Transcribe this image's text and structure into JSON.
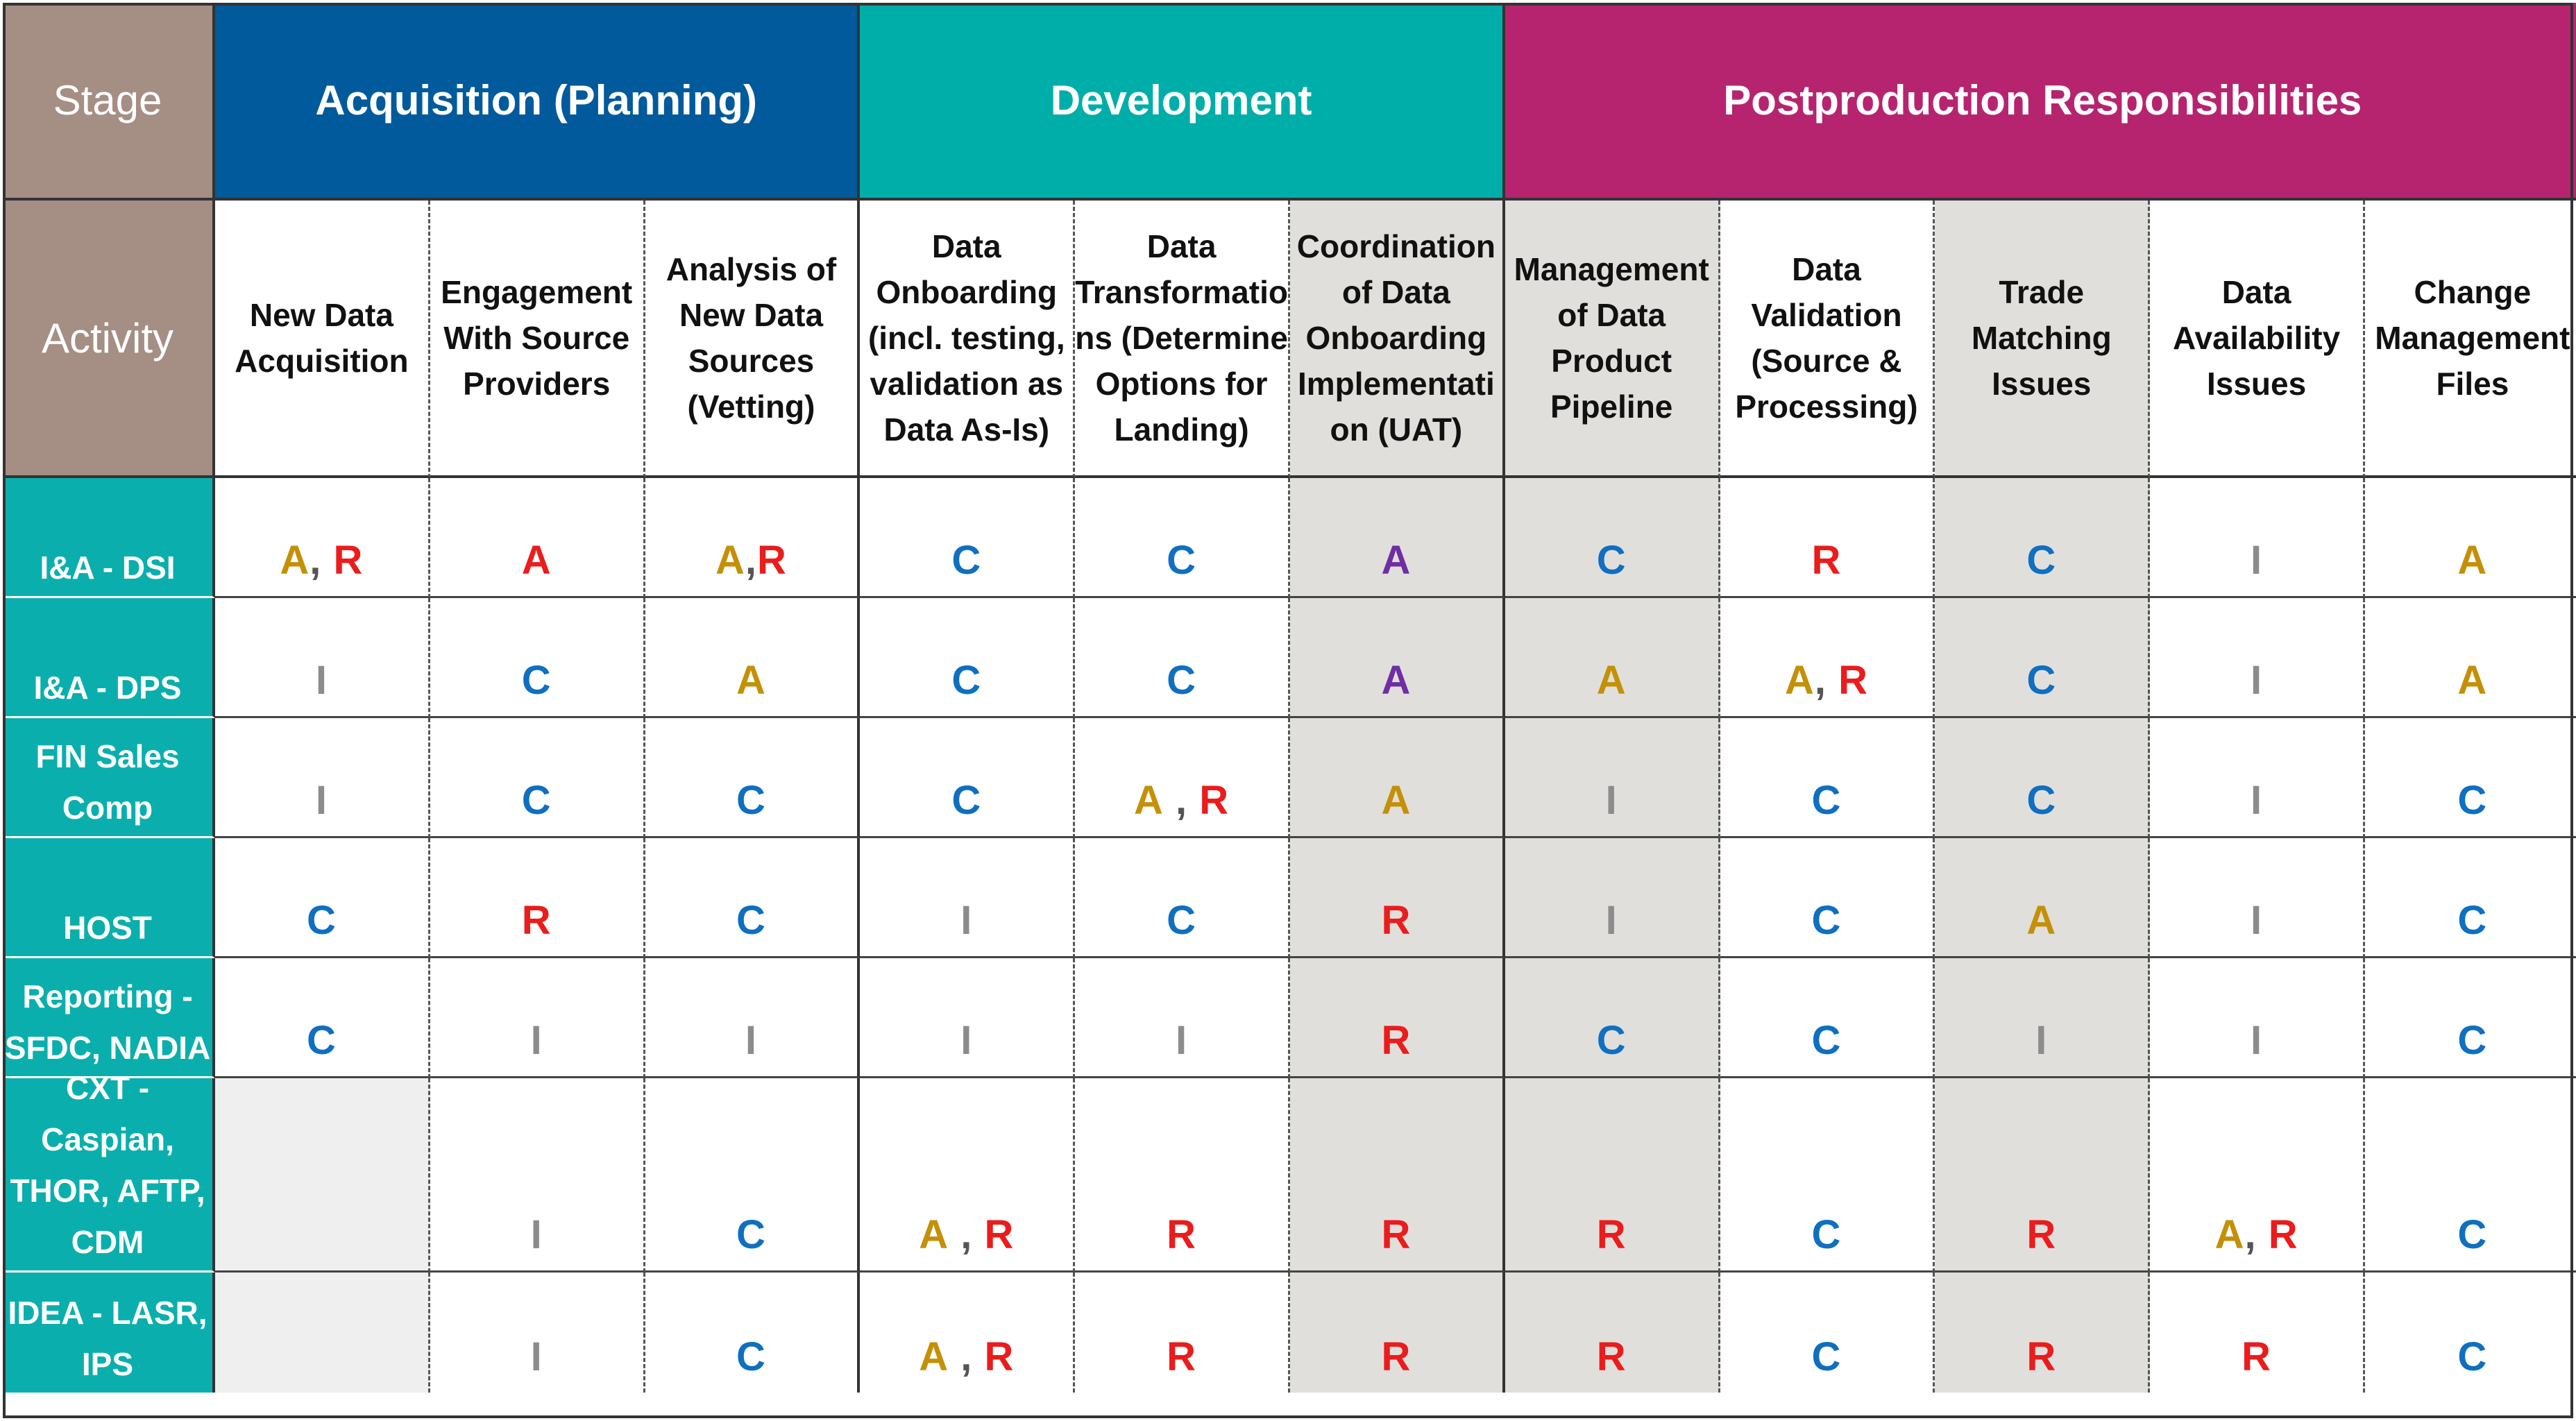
{
  "header": {
    "stage_label": "Stage",
    "activity_label": "Activity",
    "groups": [
      {
        "label": "Acquisition (Planning)",
        "span": 3,
        "color": "#005a9c"
      },
      {
        "label": "Development",
        "span": 3,
        "color": "#00aea9"
      },
      {
        "label": "Postproduction Responsibilities",
        "span": 5,
        "color": "#b6246f"
      }
    ]
  },
  "activities": [
    {
      "label": "New Data\nAcquisition",
      "shaded": false
    },
    {
      "label": "Engagement\nWith Source\nProviders",
      "shaded": false
    },
    {
      "label": "Analysis of\nNew Data\nSources\n(Vetting)",
      "shaded": false
    },
    {
      "label": "Data\nOnboarding\n(incl. testing,\nvalidation as\nData As-Is)",
      "shaded": false
    },
    {
      "label": "Data\nTransformatio\nns (Determine\nOptions for\nLanding)",
      "shaded": false
    },
    {
      "label": "Coordination\nof Data\nOnboarding\nImplementati\non (UAT)",
      "shaded": true
    },
    {
      "label": "Management\nof Data\nProduct\nPipeline",
      "shaded": true
    },
    {
      "label": "Data\nValidation\n(Source &\nProcessing)",
      "shaded": false
    },
    {
      "label": "Trade\nMatching\nIssues",
      "shaded": true
    },
    {
      "label": "Data\nAvailability\nIssues",
      "shaded": false
    },
    {
      "label": "Change\nManagement\nFiles",
      "shaded": false
    }
  ],
  "rows": [
    {
      "label": "I&A - DSI",
      "cells": [
        [
          {
            "t": "A",
            "c": "A"
          },
          {
            "t": ", ",
            "c": "sep"
          },
          {
            "t": "R",
            "c": "R"
          }
        ],
        [
          {
            "t": "A",
            "c": "R"
          }
        ],
        [
          {
            "t": "A",
            "c": "A"
          },
          {
            "t": ",",
            "c": "sep"
          },
          {
            "t": "R",
            "c": "R"
          }
        ],
        [
          {
            "t": "C",
            "c": "C"
          }
        ],
        [
          {
            "t": "C",
            "c": "C"
          }
        ],
        [
          {
            "t": "A",
            "c": "P"
          }
        ],
        [
          {
            "t": "C",
            "c": "C"
          }
        ],
        [
          {
            "t": "R",
            "c": "R"
          }
        ],
        [
          {
            "t": "C",
            "c": "C"
          }
        ],
        [
          {
            "t": "I",
            "c": "I"
          }
        ],
        [
          {
            "t": "A",
            "c": "A"
          }
        ]
      ]
    },
    {
      "label": "I&A - DPS",
      "cells": [
        [
          {
            "t": "I",
            "c": "I"
          }
        ],
        [
          {
            "t": "C",
            "c": "C"
          }
        ],
        [
          {
            "t": "A",
            "c": "A"
          }
        ],
        [
          {
            "t": "C",
            "c": "C"
          }
        ],
        [
          {
            "t": "C",
            "c": "C"
          }
        ],
        [
          {
            "t": "A",
            "c": "P"
          }
        ],
        [
          {
            "t": "A",
            "c": "A"
          }
        ],
        [
          {
            "t": "A",
            "c": "A"
          },
          {
            "t": ", ",
            "c": "sep"
          },
          {
            "t": "R",
            "c": "R"
          }
        ],
        [
          {
            "t": "C",
            "c": "C"
          }
        ],
        [
          {
            "t": "I",
            "c": "I"
          }
        ],
        [
          {
            "t": "A",
            "c": "A"
          }
        ]
      ]
    },
    {
      "label": "FIN Sales\nComp",
      "cells": [
        [
          {
            "t": "I",
            "c": "I"
          }
        ],
        [
          {
            "t": "C",
            "c": "C"
          }
        ],
        [
          {
            "t": "C",
            "c": "C"
          }
        ],
        [
          {
            "t": "C",
            "c": "C"
          }
        ],
        [
          {
            "t": "A",
            "c": "A"
          },
          {
            "t": " , ",
            "c": "sep"
          },
          {
            "t": "R",
            "c": "R"
          }
        ],
        [
          {
            "t": "A",
            "c": "A"
          }
        ],
        [
          {
            "t": "I",
            "c": "I"
          }
        ],
        [
          {
            "t": "C",
            "c": "C"
          }
        ],
        [
          {
            "t": "C",
            "c": "C"
          }
        ],
        [
          {
            "t": "I",
            "c": "I"
          }
        ],
        [
          {
            "t": "C",
            "c": "C"
          }
        ]
      ]
    },
    {
      "label": "HOST",
      "cells": [
        [
          {
            "t": "C",
            "c": "C"
          }
        ],
        [
          {
            "t": "R",
            "c": "R"
          }
        ],
        [
          {
            "t": "C",
            "c": "C"
          }
        ],
        [
          {
            "t": "I",
            "c": "I"
          }
        ],
        [
          {
            "t": "C",
            "c": "C"
          }
        ],
        [
          {
            "t": "R",
            "c": "R"
          }
        ],
        [
          {
            "t": "I",
            "c": "I"
          }
        ],
        [
          {
            "t": "C",
            "c": "C"
          }
        ],
        [
          {
            "t": "A",
            "c": "A"
          }
        ],
        [
          {
            "t": "I",
            "c": "I"
          }
        ],
        [
          {
            "t": "C",
            "c": "C"
          }
        ]
      ]
    },
    {
      "label": "Reporting -\nSFDC, NADIA",
      "cells": [
        [
          {
            "t": "C",
            "c": "C"
          }
        ],
        [
          {
            "t": "I",
            "c": "I"
          }
        ],
        [
          {
            "t": "I",
            "c": "I"
          }
        ],
        [
          {
            "t": "I",
            "c": "I"
          }
        ],
        [
          {
            "t": "I",
            "c": "I"
          }
        ],
        [
          {
            "t": "R",
            "c": "R"
          }
        ],
        [
          {
            "t": "C",
            "c": "C"
          }
        ],
        [
          {
            "t": "C",
            "c": "C"
          }
        ],
        [
          {
            "t": "I",
            "c": "I"
          }
        ],
        [
          {
            "t": "I",
            "c": "I"
          }
        ],
        [
          {
            "t": "C",
            "c": "C"
          }
        ]
      ]
    },
    {
      "label": "CXT -\nCaspian,\nTHOR, AFTP,\nCDM",
      "cells": [
        [],
        [
          {
            "t": "I",
            "c": "I"
          }
        ],
        [
          {
            "t": "C",
            "c": "C"
          }
        ],
        [
          {
            "t": "A",
            "c": "A"
          },
          {
            "t": " , ",
            "c": "sep"
          },
          {
            "t": "R",
            "c": "R"
          }
        ],
        [
          {
            "t": "R",
            "c": "R"
          }
        ],
        [
          {
            "t": "R",
            "c": "R"
          }
        ],
        [
          {
            "t": "R",
            "c": "R"
          }
        ],
        [
          {
            "t": "C",
            "c": "C"
          }
        ],
        [
          {
            "t": "R",
            "c": "R"
          }
        ],
        [
          {
            "t": "A",
            "c": "A"
          },
          {
            "t": ", ",
            "c": "sep"
          },
          {
            "t": "R",
            "c": "R"
          }
        ],
        [
          {
            "t": "C",
            "c": "C"
          }
        ]
      ]
    },
    {
      "label": "IDEA - LASR,\nIPS",
      "cells": [
        [],
        [
          {
            "t": "I",
            "c": "I"
          }
        ],
        [
          {
            "t": "C",
            "c": "C"
          }
        ],
        [
          {
            "t": "A",
            "c": "A"
          },
          {
            "t": " , ",
            "c": "sep"
          },
          {
            "t": "R",
            "c": "R"
          }
        ],
        [
          {
            "t": "R",
            "c": "R"
          }
        ],
        [
          {
            "t": "R",
            "c": "R"
          }
        ],
        [
          {
            "t": "R",
            "c": "R"
          }
        ],
        [
          {
            "t": "C",
            "c": "C"
          }
        ],
        [
          {
            "t": "R",
            "c": "R"
          }
        ],
        [
          {
            "t": "R",
            "c": "R"
          }
        ],
        [
          {
            "t": "C",
            "c": "C"
          }
        ]
      ]
    }
  ]
}
